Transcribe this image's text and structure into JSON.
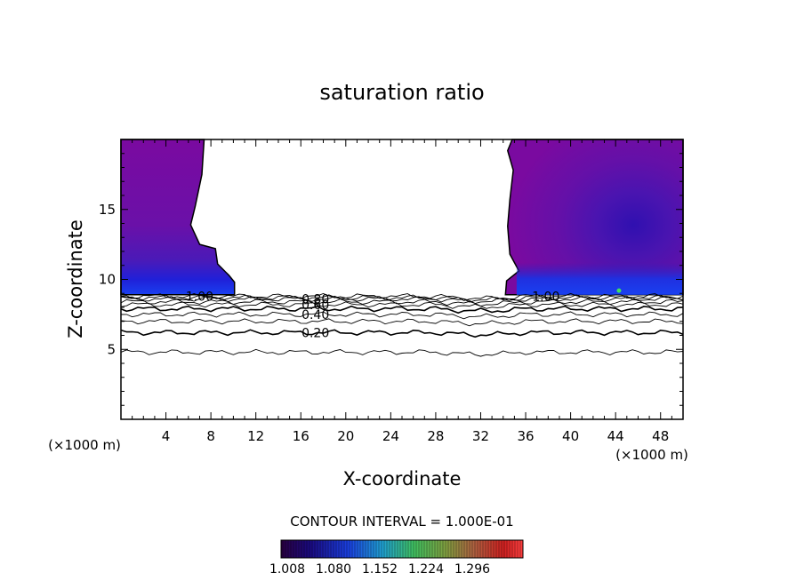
{
  "chart_data": {
    "type": "heatmap",
    "title": "saturation ratio",
    "xlabel": "X-coordinate",
    "ylabel": "Z-coordinate",
    "x_unit_left": "(×1000 m)",
    "x_unit_right": "(×1000 m)",
    "xlim": [
      0,
      50
    ],
    "ylim": [
      0,
      20
    ],
    "x_ticks": [
      4,
      8,
      12,
      16,
      20,
      24,
      28,
      32,
      36,
      40,
      44,
      48
    ],
    "y_ticks": [
      5,
      10,
      15
    ],
    "contour_interval_text": "CONTOUR INTERVAL = 1.000E-01",
    "colorbar": {
      "min": 1.008,
      "max": 1.35,
      "tick_labels": [
        "1.008",
        "1.080",
        "1.152",
        "1.224",
        "1.296"
      ]
    },
    "contour_levels": [
      0.1,
      0.2,
      0.3,
      0.4,
      0.5,
      0.6,
      0.7,
      0.8,
      0.9,
      1.0
    ],
    "contour_heights": [
      4.8,
      6.2,
      7.0,
      7.5,
      7.9,
      8.2,
      8.4,
      8.6,
      8.7,
      8.8
    ],
    "contour_labels": [
      {
        "text": "0.20",
        "x": 17.3,
        "z": 6.2
      },
      {
        "text": "0.40",
        "x": 17.3,
        "z": 7.5
      },
      {
        "text": "0.60",
        "x": 17.3,
        "z": 8.2
      },
      {
        "text": "0.80",
        "x": 17.3,
        "z": 8.6
      },
      {
        "text": "1.00",
        "x": 7.0,
        "z": 8.8
      },
      {
        "text": "1.00",
        "x": 37.8,
        "z": 8.8
      }
    ],
    "supersaturated_regions": [
      {
        "name": "left",
        "x_range": [
          0,
          10
        ],
        "z_range": [
          9,
          20
        ]
      },
      {
        "name": "right",
        "x_range": [
          34.5,
          50
        ],
        "z_range": [
          9,
          20
        ]
      }
    ]
  }
}
